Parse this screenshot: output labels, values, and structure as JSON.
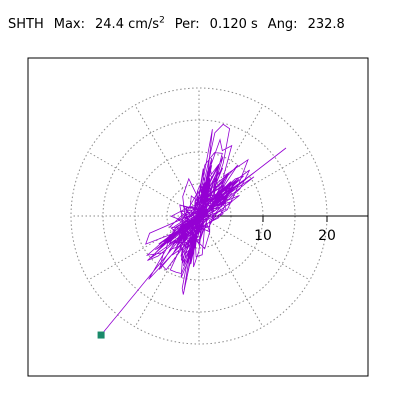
{
  "header": {
    "station": "SHTH",
    "max_label": "Max:",
    "max_value": "24.4 cm/s",
    "max_exponent": "2",
    "per_label": "Per:",
    "per_value": "0.120 s",
    "ang_label": "Ang:",
    "ang_value": "232.8"
  },
  "chart_data": {
    "type": "scatter",
    "subtype": "particle-motion-polar",
    "title": "",
    "xlabel": "",
    "ylabel": "",
    "radial_ticks": [
      10,
      20
    ],
    "tick_labels": [
      "10",
      "20"
    ],
    "rings": [
      5,
      10,
      15,
      20
    ],
    "spokes_deg": [
      0,
      30,
      60,
      90,
      120,
      150,
      180,
      210,
      240,
      270,
      300,
      330
    ],
    "x_range": [
      -14,
      22
    ],
    "y_range": [
      -21,
      13
    ],
    "end_point": {
      "x": -15.3,
      "y": -18.6
    },
    "peak_angle_deg": 232.8,
    "peak_amplitude": 24.4,
    "colors": {
      "trace": "#9400D3",
      "grid": "#8a8a8a",
      "axes": "#000000",
      "end_marker": "#1a8a6a"
    }
  }
}
